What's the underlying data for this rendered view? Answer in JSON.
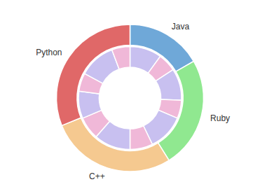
{
  "chart_data": {
    "type": "pie",
    "series": [
      {
        "categories": [
          "Java",
          "Ruby",
          "C++",
          "Python"
        ],
        "values": [
          15,
          22,
          25,
          28
        ],
        "colors": [
          "#6fa8d8",
          "#90e890",
          "#f5c990",
          "#e06868"
        ]
      },
      {
        "values": [
          7,
          4,
          7,
          4,
          8,
          5,
          8,
          5,
          6,
          4,
          8,
          4
        ],
        "colors": [
          "#c8c0f0",
          "#f0b8d8",
          "#c8c0f0",
          "#f0b8d8",
          "#c8c0f0",
          "#f0b8d8",
          "#c8c0f0",
          "#f0b8d8",
          "#c8c0f0",
          "#f0b8d8",
          "#c8c0f0",
          "#f0b8d8"
        ]
      }
    ]
  }
}
